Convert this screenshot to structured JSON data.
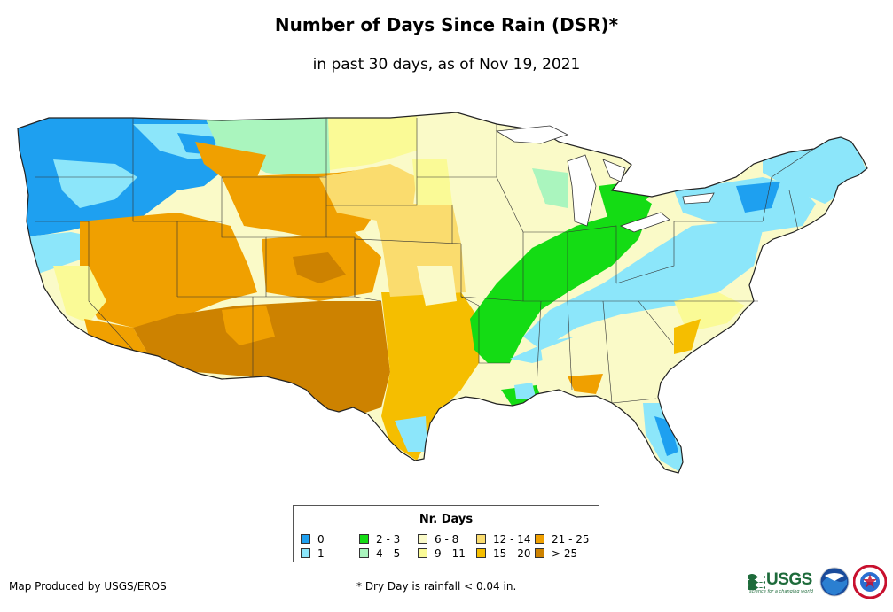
{
  "header": {
    "title": "Number of Days Since Rain (DSR)*",
    "subtitle": "in past 30 days, as of Nov 19, 2021"
  },
  "legend": {
    "title": "Nr. Days",
    "items": [
      {
        "label": "0",
        "color": "#1ea0f0"
      },
      {
        "label": "1",
        "color": "#8ce6fa"
      },
      {
        "label": "2 - 3",
        "color": "#14dc14"
      },
      {
        "label": "4 - 5",
        "color": "#aaf5be"
      },
      {
        "label": "6 - 8",
        "color": "#fafac8"
      },
      {
        "label": "9 - 11",
        "color": "#fafa96"
      },
      {
        "label": "12 - 14",
        "color": "#fadc6e"
      },
      {
        "label": "15 - 20",
        "color": "#f5be00"
      },
      {
        "label": "21 - 25",
        "color": "#f0a000"
      },
      {
        "label": "> 25",
        "color": "#cd8200"
      }
    ]
  },
  "footer": {
    "credit": "Map Produced by USGS/EROS",
    "note": "* Dry Day is rainfall < 0.04 in.",
    "usgs_logo_text": "USGS",
    "usgs_tagline": "science for a changing world"
  },
  "icons": [
    "usgs-logo",
    "noaa-logo",
    "nws-logo"
  ]
}
